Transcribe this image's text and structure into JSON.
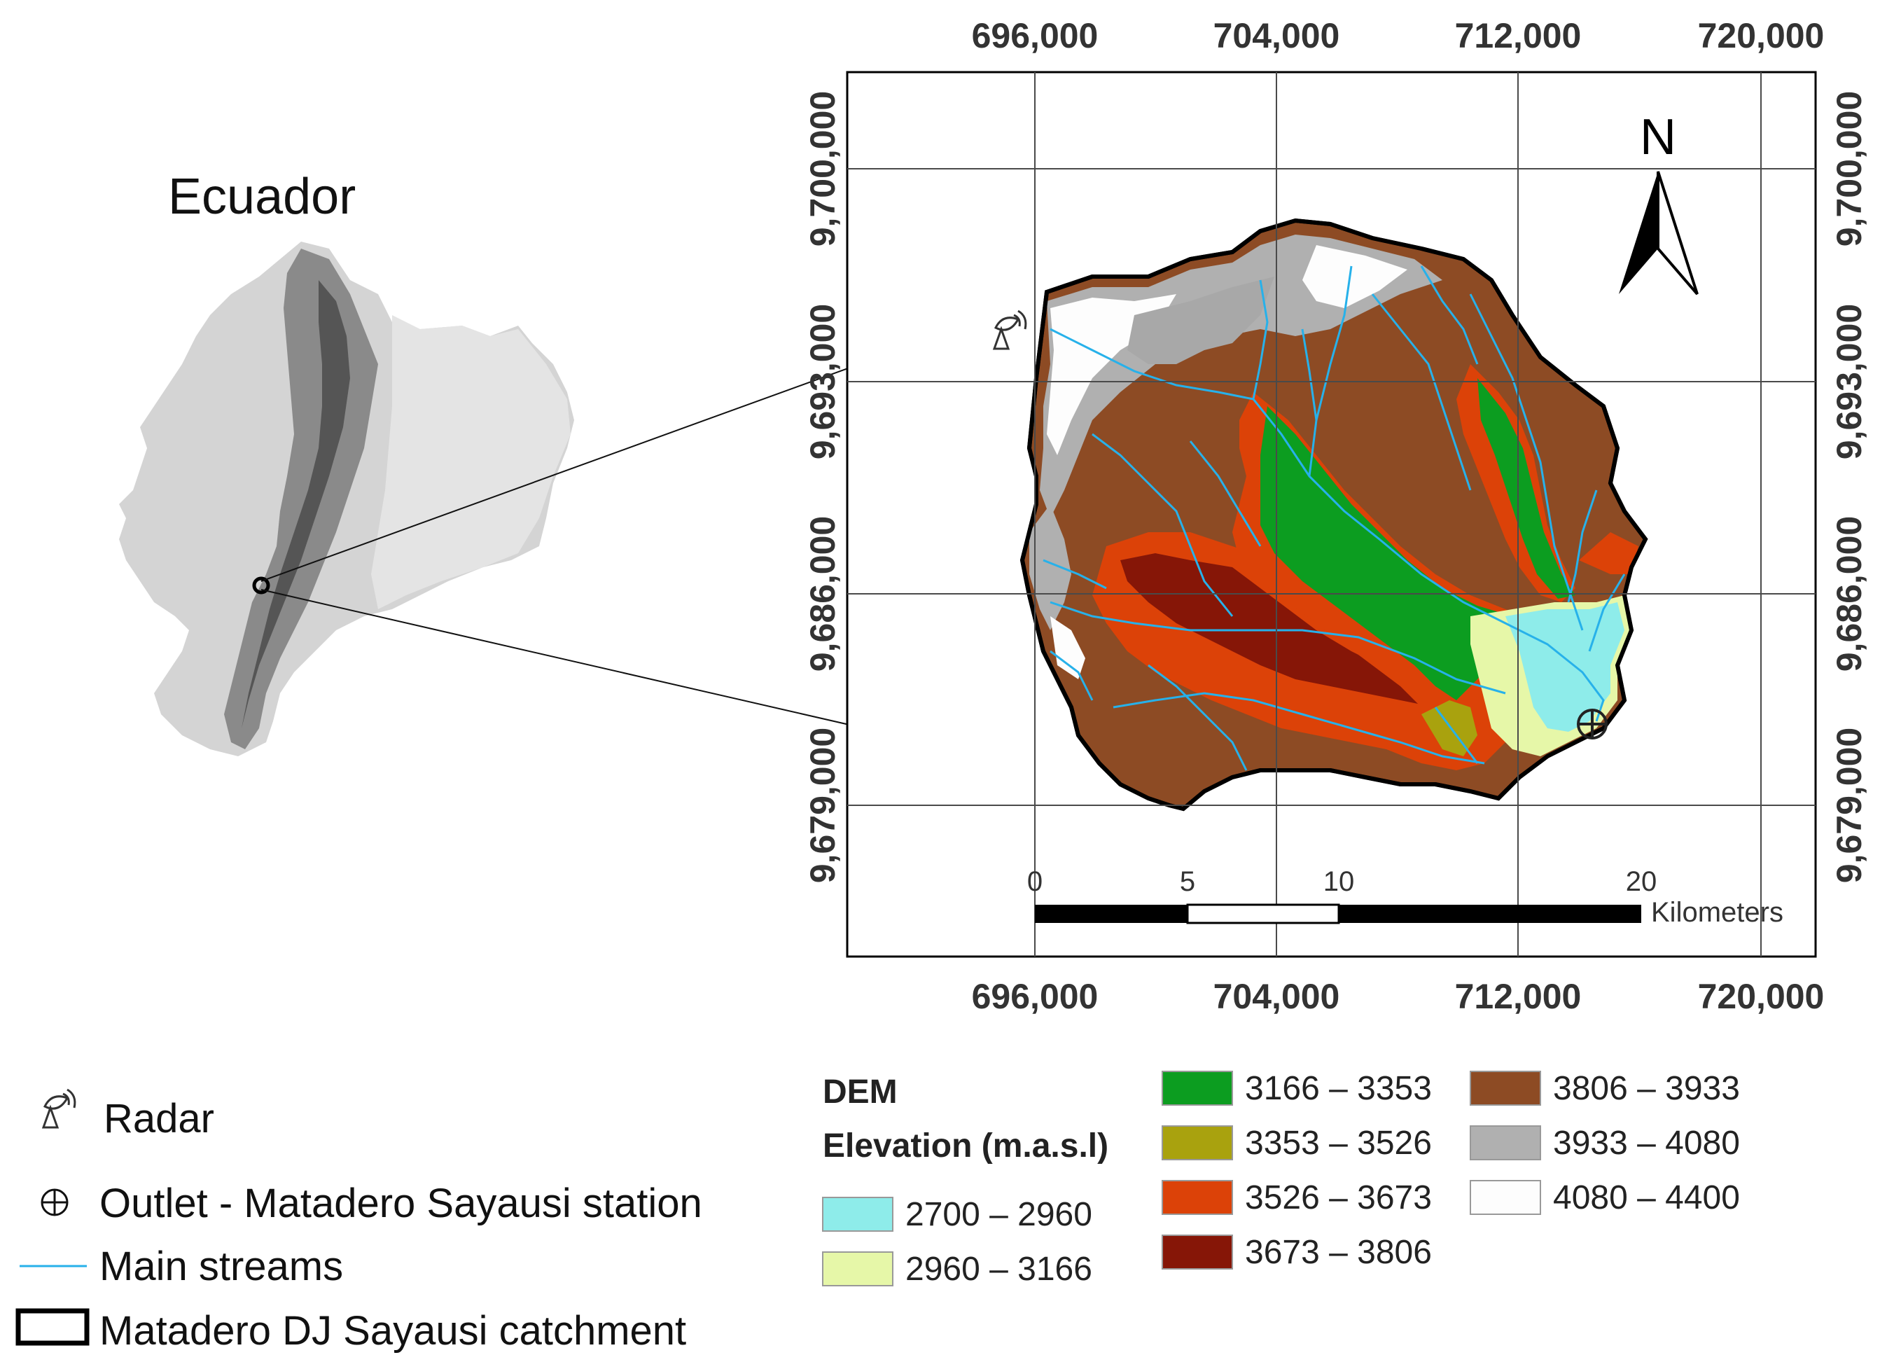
{
  "overview": {
    "country_label": "Ecuador"
  },
  "main_map": {
    "x_ticks": [
      "696,000",
      "704,000",
      "712,000",
      "720,000"
    ],
    "y_ticks": [
      "9,700,000",
      "9,693,000",
      "9,686,000",
      "9,679,000"
    ],
    "north_label": "N",
    "scale_bar": {
      "ticks": [
        "0",
        "5",
        "10",
        "20"
      ],
      "unit": "Kilometers"
    }
  },
  "legend": {
    "radar": "Radar",
    "outlet": "Outlet - Matadero Sayausi station",
    "streams": "Main streams",
    "catchment": "Matadero DJ Sayausi catchment",
    "dem_title": "DEM",
    "dem_subtitle": "Elevation (m.a.s.l)",
    "dem_classes": [
      {
        "label": "2700 – 2960",
        "color": "#8eecea"
      },
      {
        "label": "2960 – 3166",
        "color": "#e6f7a8"
      },
      {
        "label": "3166 – 3353",
        "color": "#0c9d20"
      },
      {
        "label": "3353 – 3526",
        "color": "#a9a20e"
      },
      {
        "label": "3526 – 3673",
        "color": "#dc4208"
      },
      {
        "label": "3673 – 3806",
        "color": "#861607"
      },
      {
        "label": "3806 – 3933",
        "color": "#8d4b24"
      },
      {
        "label": "3933 – 4080",
        "color": "#b0b0b0"
      },
      {
        "label": "4080 – 4400",
        "color": "#fdfdfd"
      }
    ]
  },
  "colors": {
    "stream": "#27b1ea",
    "frame": "#000000",
    "grid": "#4a4a4a"
  },
  "icons": [
    "radar-icon",
    "outlet-icon",
    "north-arrow-icon"
  ]
}
